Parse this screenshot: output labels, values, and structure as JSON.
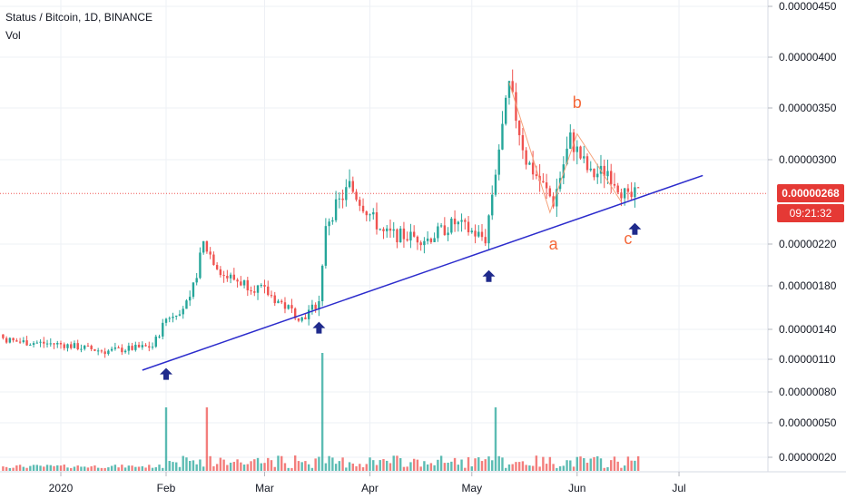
{
  "legend": {
    "title": "Status / Bitcoin, 1D, BINANCE",
    "sub": "Vol"
  },
  "last_price": {
    "value": "0.00000268",
    "countdown": "09:21:32",
    "price": 2.68e-06
  },
  "colors": {
    "up": "#26a69a",
    "down": "#ef5350",
    "trend": "#2c2ccc",
    "arrow": "#1f2a8c",
    "label": "#f4683a",
    "grid": "#edf0f5"
  },
  "chart_data": {
    "type": "candlestick",
    "title": "Status / Bitcoin, 1D, BINANCE",
    "y_scale": "log",
    "y_ticks": [
      "0.00000020",
      "0.00000050",
      "0.00000080",
      "0.00000110",
      "0.00000140",
      "0.00000180",
      "0.00000220",
      "0.00000300",
      "0.00000350",
      "0.00000400",
      "0.00000450"
    ],
    "x_ticks": [
      "2020",
      "Feb",
      "Mar",
      "Apr",
      "May",
      "Jun",
      "Jul"
    ],
    "price_points": [
      {
        "date": "2019-12-05",
        "close": 1.42e-06
      },
      {
        "date": "2019-12-18",
        "close": 1.28e-06
      },
      {
        "date": "2020-01-01",
        "close": 1.25e-06
      },
      {
        "date": "2020-01-14",
        "close": 1.18e-06
      },
      {
        "date": "2020-01-28",
        "close": 1.23e-06
      },
      {
        "date": "2020-02-01",
        "close": 1.5e-06
      },
      {
        "date": "2020-02-08",
        "close": 1.65e-06
      },
      {
        "date": "2020-02-12",
        "close": 2.2e-06
      },
      {
        "date": "2020-02-18",
        "close": 1.9e-06
      },
      {
        "date": "2020-03-01",
        "close": 1.75e-06
      },
      {
        "date": "2020-03-12",
        "close": 1.5e-06
      },
      {
        "date": "2020-03-17",
        "close": 1.65e-06
      },
      {
        "date": "2020-03-19",
        "close": 2.4e-06
      },
      {
        "date": "2020-03-26",
        "close": 2.75e-06
      },
      {
        "date": "2020-04-05",
        "close": 2.3e-06
      },
      {
        "date": "2020-04-18",
        "close": 2.25e-06
      },
      {
        "date": "2020-04-26",
        "close": 2.4e-06
      },
      {
        "date": "2020-05-05",
        "close": 2.25e-06
      },
      {
        "date": "2020-05-08",
        "close": 2.9e-06
      },
      {
        "date": "2020-05-12",
        "close": 3.7e-06
      },
      {
        "date": "2020-05-17",
        "close": 3e-06
      },
      {
        "date": "2020-05-25",
        "close": 2.6e-06
      },
      {
        "date": "2020-05-30",
        "close": 3.2e-06
      },
      {
        "date": "2020-06-05",
        "close": 2.85e-06
      },
      {
        "date": "2020-06-10",
        "close": 2.9e-06
      },
      {
        "date": "2020-06-16",
        "close": 2.62e-06
      },
      {
        "date": "2020-06-19",
        "close": 2.68e-06
      }
    ],
    "volume_spikes": [
      {
        "date": "2020-02-01",
        "vol": "high"
      },
      {
        "date": "2020-02-13",
        "vol": "high"
      },
      {
        "date": "2020-03-18",
        "vol": "highest"
      },
      {
        "date": "2020-05-08",
        "vol": "high"
      }
    ],
    "trendline": {
      "start": {
        "date": "2020-01-25",
        "price": 1e-06
      },
      "end": {
        "date": "2020-07-08",
        "price": 2.85e-06
      }
    },
    "swing_line": [
      {
        "date": "2020-05-12",
        "price": 3.75e-06
      },
      {
        "date": "2020-05-24",
        "price": 2.5e-06
      },
      {
        "date": "2020-06-01",
        "price": 3.25e-06
      },
      {
        "date": "2020-06-14",
        "price": 2.6e-06
      }
    ],
    "annotations": [
      {
        "text": "a",
        "date": "2020-05-25",
        "price": 2.15e-06
      },
      {
        "text": "b",
        "date": "2020-06-01",
        "price": 3.5e-06
      },
      {
        "text": "c",
        "date": "2020-06-16",
        "price": 2.2e-06
      }
    ],
    "arrows": [
      {
        "date": "2020-02-01",
        "price": 1.02e-06
      },
      {
        "date": "2020-03-17",
        "price": 1.47e-06
      },
      {
        "date": "2020-05-06",
        "price": 1.95e-06
      },
      {
        "date": "2020-06-18",
        "price": 2.4e-06
      }
    ]
  }
}
